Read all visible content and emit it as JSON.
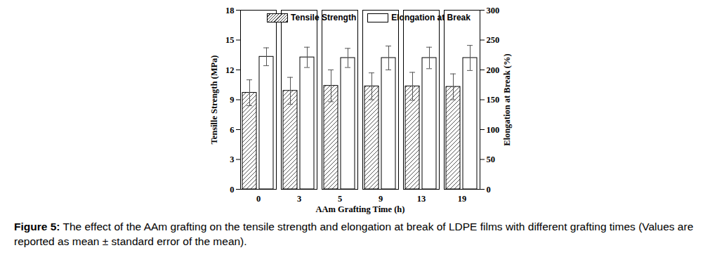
{
  "chart_data": {
    "type": "bar",
    "caption": "Figure 5: The effect of the AAm grafting on the tensile strength and elongation at break of LDPE films with different grafting times (Values are reported as mean ± standard error of the mean).",
    "x_label": "AAm Grafting Time (h)",
    "y_label": "Tensille Strength (MPa)",
    "y2_label": "Elongation at Break (%)",
    "categories": [
      0,
      3,
      5,
      9,
      13,
      19
    ],
    "series": [
      {
        "name": "Tensile Strength",
        "color": "#444444",
        "values": [
          9.7,
          9.9,
          10.4,
          10.35,
          10.35,
          10.3
        ],
        "errors": [
          1.3,
          1.35,
          1.6,
          1.35,
          1.4,
          1.3
        ]
      },
      {
        "name": "Elongation at Break",
        "color": "#ffffff",
        "axis": "y2",
        "values": [
          222,
          221,
          220,
          220,
          220,
          220
        ],
        "errors": [
          15,
          17,
          16,
          20,
          18,
          21
        ]
      }
    ],
    "ylim": [
      0,
      18
    ],
    "yticks": [
      0,
      3,
      6,
      9,
      12,
      15,
      18
    ],
    "y2lim": [
      0,
      300
    ],
    "y2ticks": [
      0,
      50,
      100,
      150,
      200,
      250,
      300
    ],
    "legend": "top",
    "grid": false
  }
}
